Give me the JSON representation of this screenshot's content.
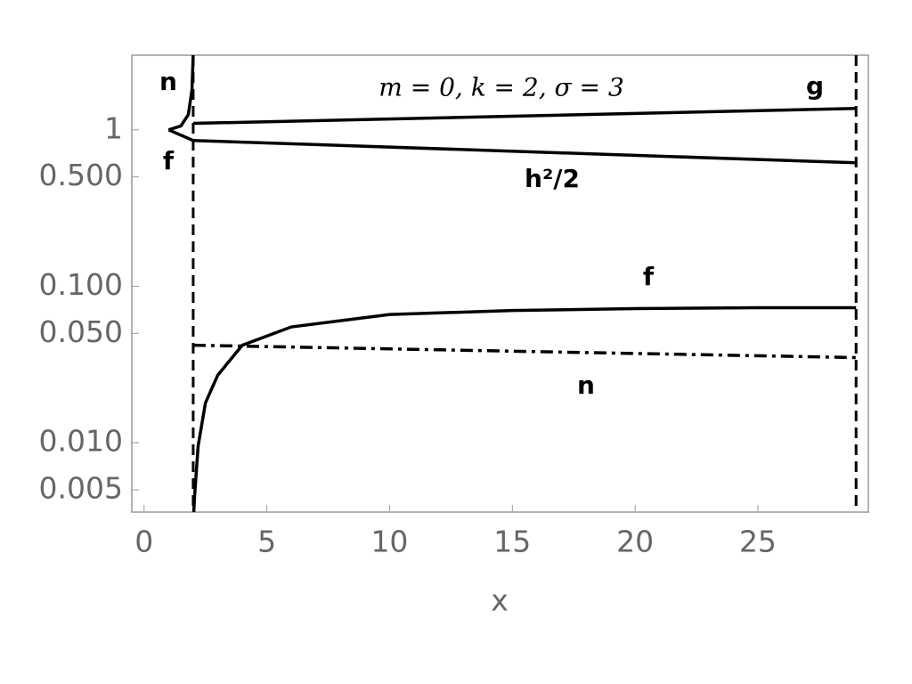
{
  "chart_data": {
    "type": "line",
    "annotation": "m = 0, k = 2, σ = 3",
    "x_label": "x",
    "xlim": [
      -0.5,
      29.5
    ],
    "xticks": [
      0,
      5,
      10,
      15,
      20,
      25
    ],
    "ylim": [
      0.0036,
      3
    ],
    "log_y": true,
    "yticks": [
      {
        "value": 0.005,
        "label": "0.005"
      },
      {
        "value": 0.01,
        "label": "0.010"
      },
      {
        "value": 0.05,
        "label": "0.050"
      },
      {
        "value": 0.1,
        "label": "0.100"
      },
      {
        "value": 0.5,
        "label": "0.500"
      },
      1
    ],
    "vlines": [
      2,
      29
    ],
    "series": [
      {
        "name": "n",
        "color": "#000000",
        "dash": "solid",
        "x": [
          1,
          1.5,
          1.8,
          1.95,
          2
        ],
        "values": [
          1,
          1.06,
          1.25,
          1.8,
          3
        ]
      },
      {
        "name": "f",
        "color": "#000000",
        "dash": "solid",
        "x": [
          1,
          2
        ],
        "values": [
          1,
          0.855
        ]
      },
      {
        "name": "g",
        "color": "#000000",
        "dash": "solid",
        "x": [
          2,
          29
        ],
        "values": [
          1.1,
          1.37
        ]
      },
      {
        "name": "h²/2",
        "color": "#000000",
        "dash": "solid",
        "x": [
          2,
          29
        ],
        "values": [
          0.855,
          0.616
        ]
      },
      {
        "name": "f",
        "color": "#000000",
        "dash": "solid",
        "x": [
          2,
          2.05,
          2.2,
          2.5,
          3,
          4,
          6,
          10,
          15,
          20,
          25,
          29
        ],
        "values": [
          0.003,
          0.0044,
          0.0095,
          0.018,
          0.027,
          0.042,
          0.055,
          0.066,
          0.07,
          0.072,
          0.073,
          0.073
        ]
      },
      {
        "name": "n",
        "color": "#000000",
        "dash": "dashdot",
        "x": [
          2,
          29
        ],
        "values": [
          0.042,
          0.035
        ]
      }
    ]
  }
}
